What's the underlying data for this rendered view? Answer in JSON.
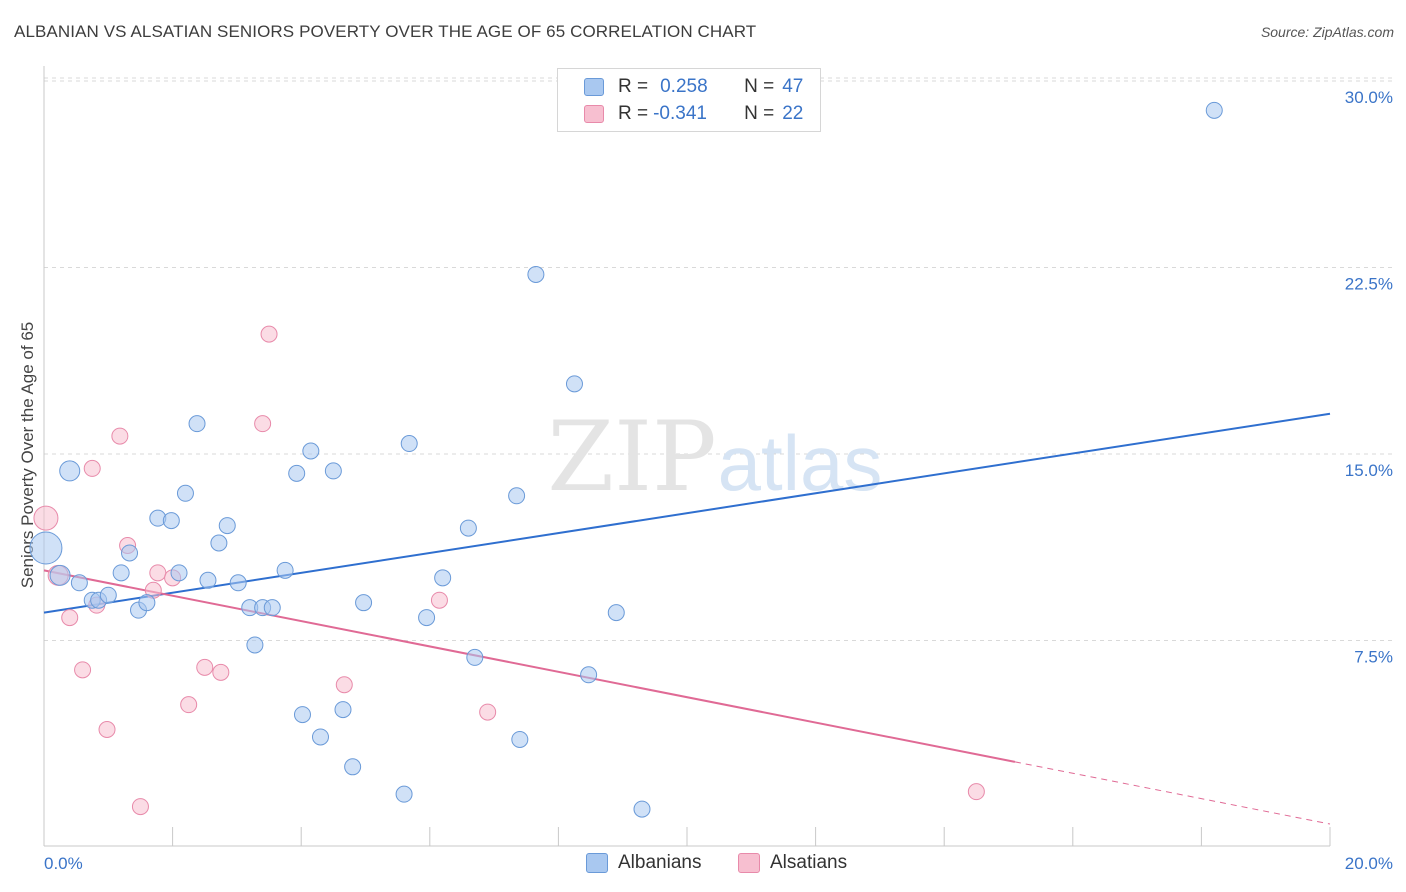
{
  "header": {
    "title": "ALBANIAN VS ALSATIAN SENIORS POVERTY OVER THE AGE OF 65 CORRELATION CHART",
    "source": "Source: ZipAtlas.com"
  },
  "legend": {
    "rows": [
      {
        "r_label": "R =",
        "r_value": "0.258",
        "n_label": "N =",
        "n_value": "47"
      },
      {
        "r_label": "R =",
        "r_value": "-0.341",
        "n_label": "N =",
        "n_value": "22"
      }
    ],
    "bottom": [
      "Albanians",
      "Alsatians"
    ]
  },
  "watermark": {
    "zip": "ZIP",
    "atlas": "atlas"
  },
  "colors": {
    "albanians_fill": "#a9c8f0",
    "albanians_stroke": "#6a9ad8",
    "albanians_line": "#2f6fcf",
    "alsatians_fill": "#f7bfd0",
    "alsatians_stroke": "#e88aaa",
    "alsatians_line": "#e06a95",
    "tick_label": "#3a74c8",
    "grid": "#d9d9d9"
  },
  "chart_data": {
    "type": "scatter",
    "title": "ALBANIAN VS ALSATIAN SENIORS POVERTY OVER THE AGE OF 65 CORRELATION CHART",
    "xlabel": "",
    "ylabel": "Seniors Poverty Over the Age of 65",
    "xlim": [
      0,
      20
    ],
    "ylim": [
      0,
      30
    ],
    "x_ticks": [
      "0.0%",
      "20.0%"
    ],
    "y_ticks": [
      {
        "value": 7.5,
        "label": "7.5%"
      },
      {
        "value": 15,
        "label": "15.0%"
      },
      {
        "value": 22.5,
        "label": "22.5%"
      },
      {
        "value": 30,
        "label": "30.0%"
      }
    ],
    "grid": "horizontal dashed",
    "legend_position": "top-center",
    "series": [
      {
        "name": "Albanians",
        "r": 0.258,
        "n": 47,
        "trend": {
          "x0": 0,
          "y0": 8.5,
          "x1": 20,
          "y1": 16.5,
          "dashed_from": null
        },
        "points": [
          {
            "x": 0.03,
            "y": 11.1,
            "s": 16
          },
          {
            "x": 0.4,
            "y": 14.2,
            "s": 10
          },
          {
            "x": 0.25,
            "y": 10.0,
            "s": 10
          },
          {
            "x": 0.55,
            "y": 9.7,
            "s": 8
          },
          {
            "x": 0.75,
            "y": 9.0,
            "s": 8
          },
          {
            "x": 0.85,
            "y": 9.0,
            "s": 8
          },
          {
            "x": 1.0,
            "y": 9.2,
            "s": 8
          },
          {
            "x": 1.2,
            "y": 10.1,
            "s": 8
          },
          {
            "x": 1.33,
            "y": 10.9,
            "s": 8
          },
          {
            "x": 1.47,
            "y": 8.6,
            "s": 8
          },
          {
            "x": 1.6,
            "y": 8.9,
            "s": 8
          },
          {
            "x": 1.77,
            "y": 12.3,
            "s": 8
          },
          {
            "x": 1.98,
            "y": 12.2,
            "s": 8
          },
          {
            "x": 2.1,
            "y": 10.1,
            "s": 8
          },
          {
            "x": 2.2,
            "y": 13.3,
            "s": 8
          },
          {
            "x": 2.38,
            "y": 16.1,
            "s": 8
          },
          {
            "x": 2.55,
            "y": 9.8,
            "s": 8
          },
          {
            "x": 2.72,
            "y": 11.3,
            "s": 8
          },
          {
            "x": 2.85,
            "y": 12.0,
            "s": 8
          },
          {
            "x": 3.02,
            "y": 9.7,
            "s": 8
          },
          {
            "x": 3.2,
            "y": 8.7,
            "s": 8
          },
          {
            "x": 3.28,
            "y": 7.2,
            "s": 8
          },
          {
            "x": 3.4,
            "y": 8.7,
            "s": 8
          },
          {
            "x": 3.55,
            "y": 8.7,
            "s": 8
          },
          {
            "x": 3.75,
            "y": 10.2,
            "s": 8
          },
          {
            "x": 3.93,
            "y": 14.1,
            "s": 8
          },
          {
            "x": 4.02,
            "y": 4.4,
            "s": 8
          },
          {
            "x": 4.15,
            "y": 15.0,
            "s": 8
          },
          {
            "x": 4.3,
            "y": 3.5,
            "s": 8
          },
          {
            "x": 4.5,
            "y": 14.2,
            "s": 8
          },
          {
            "x": 4.65,
            "y": 4.6,
            "s": 8
          },
          {
            "x": 4.8,
            "y": 2.3,
            "s": 8
          },
          {
            "x": 4.97,
            "y": 8.9,
            "s": 8
          },
          {
            "x": 5.6,
            "y": 1.2,
            "s": 8
          },
          {
            "x": 5.68,
            "y": 15.3,
            "s": 8
          },
          {
            "x": 5.95,
            "y": 8.3,
            "s": 8
          },
          {
            "x": 6.2,
            "y": 9.9,
            "s": 8
          },
          {
            "x": 6.6,
            "y": 11.9,
            "s": 8
          },
          {
            "x": 6.7,
            "y": 6.7,
            "s": 8
          },
          {
            "x": 7.35,
            "y": 13.2,
            "s": 8
          },
          {
            "x": 7.4,
            "y": 3.4,
            "s": 8
          },
          {
            "x": 7.65,
            "y": 22.1,
            "s": 8
          },
          {
            "x": 8.25,
            "y": 17.7,
            "s": 8
          },
          {
            "x": 8.47,
            "y": 6.0,
            "s": 8
          },
          {
            "x": 8.9,
            "y": 8.5,
            "s": 8
          },
          {
            "x": 9.3,
            "y": 0.6,
            "s": 8
          },
          {
            "x": 18.2,
            "y": 28.7,
            "s": 8
          }
        ]
      },
      {
        "name": "Alsatians",
        "r": -0.341,
        "n": 22,
        "trend": {
          "x0": 0,
          "y0": 10.2,
          "x1": 20,
          "y1": 0,
          "dashed_from": 15.1
        },
        "points": [
          {
            "x": 0.03,
            "y": 12.3,
            "s": 12
          },
          {
            "x": 0.22,
            "y": 10.0,
            "s": 10
          },
          {
            "x": 0.4,
            "y": 8.3,
            "s": 8
          },
          {
            "x": 0.6,
            "y": 6.2,
            "s": 8
          },
          {
            "x": 0.75,
            "y": 14.3,
            "s": 8
          },
          {
            "x": 0.82,
            "y": 8.8,
            "s": 8
          },
          {
            "x": 0.98,
            "y": 3.8,
            "s": 8
          },
          {
            "x": 1.18,
            "y": 15.6,
            "s": 8
          },
          {
            "x": 1.3,
            "y": 11.2,
            "s": 8
          },
          {
            "x": 1.5,
            "y": 0.7,
            "s": 8
          },
          {
            "x": 1.7,
            "y": 9.4,
            "s": 8
          },
          {
            "x": 1.77,
            "y": 10.1,
            "s": 8
          },
          {
            "x": 2.0,
            "y": 9.9,
            "s": 8
          },
          {
            "x": 2.25,
            "y": 4.8,
            "s": 8
          },
          {
            "x": 2.5,
            "y": 6.3,
            "s": 8
          },
          {
            "x": 2.75,
            "y": 6.1,
            "s": 8
          },
          {
            "x": 3.4,
            "y": 16.1,
            "s": 8
          },
          {
            "x": 3.5,
            "y": 19.7,
            "s": 8
          },
          {
            "x": 4.67,
            "y": 5.6,
            "s": 8
          },
          {
            "x": 6.15,
            "y": 9.0,
            "s": 8
          },
          {
            "x": 6.9,
            "y": 4.5,
            "s": 8
          },
          {
            "x": 14.5,
            "y": 1.3,
            "s": 8
          }
        ]
      }
    ]
  }
}
